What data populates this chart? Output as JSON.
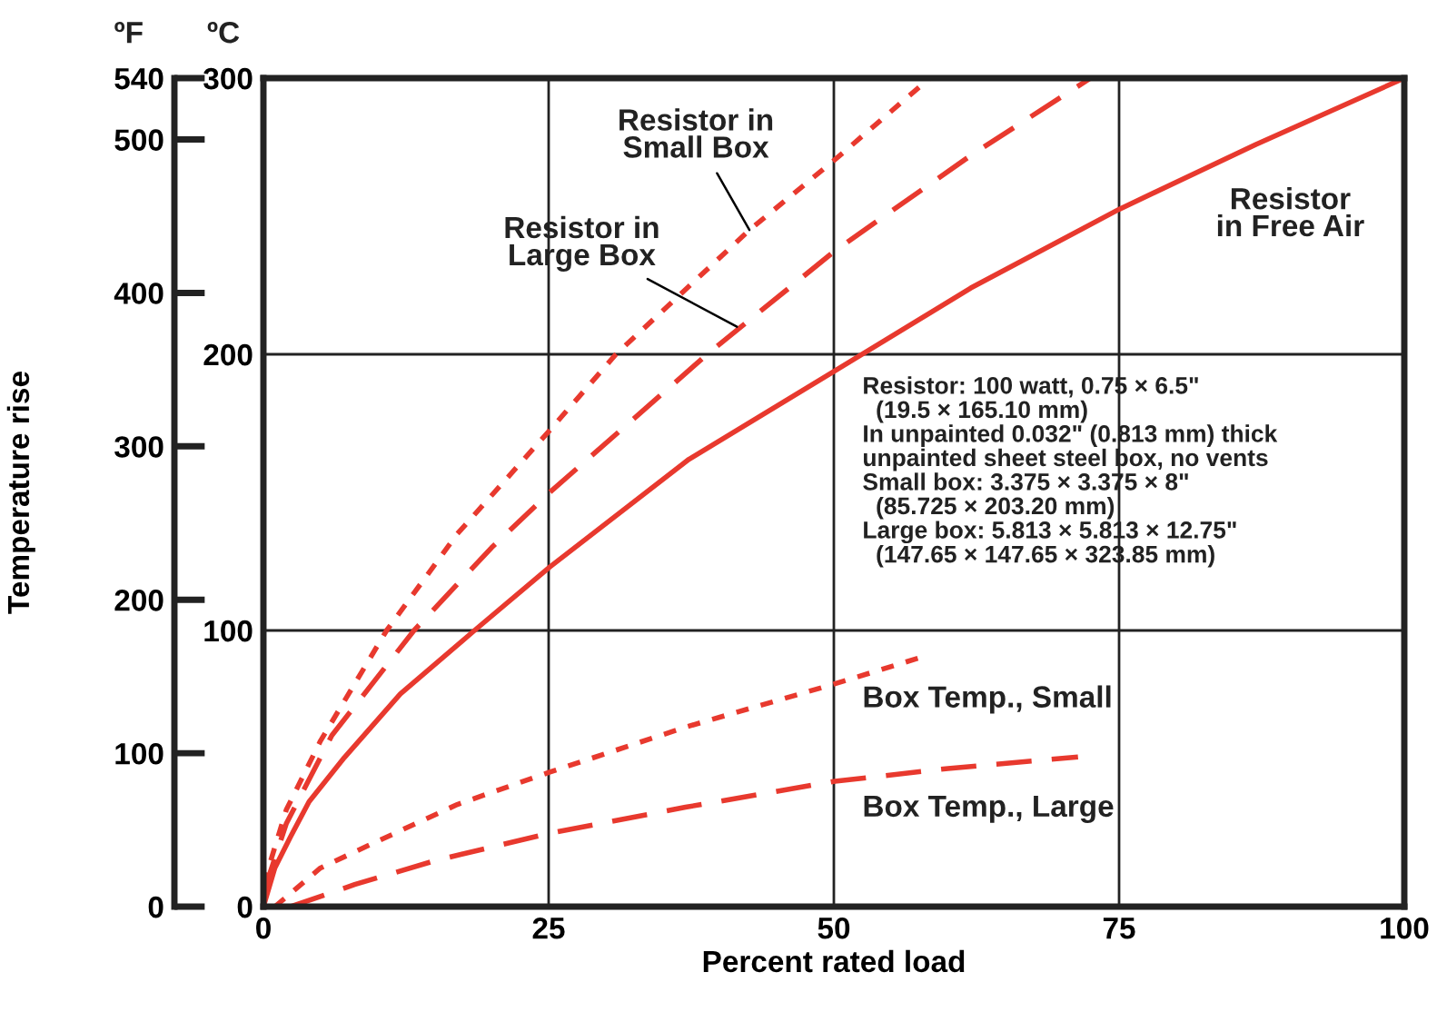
{
  "chart_data": {
    "type": "line",
    "xlabel": "Percent rated load",
    "y2label": "Temperature rise",
    "xlim": [
      0,
      100
    ],
    "xticks": [
      0,
      25,
      50,
      75,
      100
    ],
    "ylim": [
      0,
      300
    ],
    "yticks": [
      0,
      100,
      200,
      300
    ],
    "y2lim": [
      0,
      540
    ],
    "y2ticks": [
      0,
      100,
      200,
      300,
      400,
      500,
      540
    ],
    "grid": true,
    "series": [
      {
        "color": "#e8392e",
        "line_style": "solid",
        "x": [
          0,
          1,
          2.4,
          4,
          7.1,
          12,
          18.5,
          25.1,
          37.3,
          50.1,
          62,
          75,
          87,
          100
        ],
        "values": [
          0,
          14,
          25.5,
          38,
          54,
          77,
          100,
          123,
          162,
          194,
          224,
          252.5,
          276,
          300
        ]
      },
      {
        "color": "#e8392e",
        "line_style": "dotted",
        "x": [
          0,
          2,
          5,
          10.8,
          17,
          25.1,
          30.9,
          42.6,
          50.1,
          58.4
        ],
        "values": [
          8,
          35,
          60,
          100,
          135,
          172.5,
          200,
          245,
          270.5,
          300
        ]
      },
      {
        "color": "#e8392e",
        "line_style": "dashed",
        "x": [
          0,
          2,
          6,
          13.2,
          20,
          25.1,
          38.9,
          50.1,
          62,
          72.5
        ],
        "values": [
          5,
          30,
          62,
          100,
          130,
          150,
          200,
          237.5,
          272,
          300
        ]
      },
      {
        "color": "#e8392e",
        "line_style": "dotted",
        "x": [
          1,
          5,
          9.8,
          17,
          25.1,
          37,
          50.1,
          57.9
        ],
        "values": [
          0,
          14,
          23.3,
          37,
          48.7,
          65,
          80.7,
          90.6
        ]
      },
      {
        "color": "#e8392e",
        "line_style": "dashed",
        "x": [
          2.4,
          8,
          15.1,
          25.1,
          37,
          50.1,
          60,
          71.4
        ],
        "values": [
          0,
          8,
          16.7,
          26.6,
          36,
          45.4,
          50,
          54.2
        ]
      }
    ],
    "annotations": [
      "ºC",
      {
        "text": "Resistor in\nSmall Box",
        "x": 42.6,
        "y": 245
      },
      {
        "text": "Resistor in\nLarge Box",
        "x": 41.5,
        "y": 210
      },
      "Resistor\nin Free Air",
      "Resistor: 100 watt, 0.75 × 6.5\"\n  (19.5 × 165.10 mm)\nIn unpainted 0.032\" (0.813 mm) thick\nunpainted sheet steel box, no vents\nSmall box: 3.375 × 3.375 × 8\"\n  (85.725 × 203.20 mm)\nLarge box: 5.813 × 5.813 × 12.75\"\n  (147.65 × 147.65 × 323.85 mm)",
      "Box Temp., Small",
      "Box Temp., Large",
      "ºF"
    ]
  }
}
